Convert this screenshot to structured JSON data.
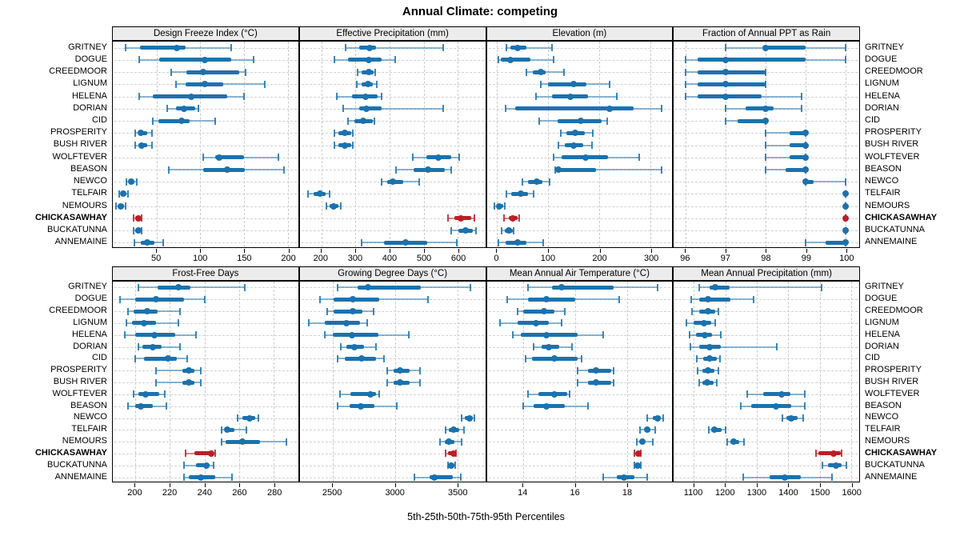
{
  "title": "Annual Climate: competing",
  "xlabel": "5th-25th-50th-75th-95th Percentiles",
  "colors": {
    "point": "#1b72ae",
    "whisker": "rgba(27,114,174,0.5)",
    "cap": "rgba(27,114,174,0.85)",
    "highlight_point": "#bb1f26",
    "highlight_whisker": "rgba(187,31,38,0.5)",
    "highlight_cap": "rgba(187,31,38,0.85)",
    "strip_bg": "#ececec",
    "grid": "#c9c9c9"
  },
  "sites": [
    "GRITNEY",
    "DOGUE",
    "CREEDMOOR",
    "LIGNUM",
    "HELENA",
    "DORIAN",
    "CID",
    "PROSPERITY",
    "BUSH RIVER",
    "WOLFTEVER",
    "BEASON",
    "NEWCO",
    "TELFAIR",
    "NEMOURS",
    "CHICKASAWHAY",
    "BUCKATUNNA",
    "ANNEMAINE"
  ],
  "highlight_site": "CHICKASAWHAY",
  "chart_data": {
    "type": "dotplot",
    "percentiles": [
      5,
      25,
      50,
      75,
      95
    ],
    "panels": [
      {
        "title": "Design Freeze Index (°C)",
        "grid_row": 0,
        "col": 0,
        "range": [
          0,
          212
        ],
        "ticks": [
          50,
          100,
          150,
          200
        ],
        "values": [
          [
            15,
            31,
            73,
            83,
            135
          ],
          [
            30,
            53,
            105,
            135,
            161
          ],
          [
            67,
            84,
            103,
            145,
            152
          ],
          [
            72,
            83,
            105,
            126,
            174
          ],
          [
            30,
            46,
            90,
            131,
            150
          ],
          [
            62,
            72,
            81,
            94,
            98
          ],
          [
            46,
            52,
            79,
            88,
            117
          ],
          [
            26,
            29,
            32,
            39,
            45
          ],
          [
            26,
            29,
            33,
            39,
            45
          ],
          [
            103,
            117,
            122,
            150,
            189
          ],
          [
            64,
            103,
            131,
            151,
            196
          ],
          [
            16,
            19,
            21,
            25,
            27
          ],
          [
            7,
            9,
            12,
            16,
            17
          ],
          [
            4,
            6,
            9,
            13,
            15
          ],
          [
            24,
            26,
            29,
            31,
            33
          ],
          [
            24,
            26,
            29,
            32,
            33
          ],
          [
            25,
            32,
            39,
            48,
            58
          ]
        ]
      },
      {
        "title": "Effective Precipitation (mm)",
        "grid_row": 0,
        "col": 1,
        "range": [
          137,
          680
        ],
        "ticks": [
          200,
          300,
          400,
          500,
          600
        ],
        "values": [
          [
            270,
            310,
            341,
            361,
            558
          ],
          [
            239,
            278,
            339,
            376,
            416
          ],
          [
            307,
            317,
            339,
            353,
            357
          ],
          [
            304,
            318,
            337,
            352,
            362
          ],
          [
            246,
            290,
            329,
            365,
            376
          ],
          [
            265,
            312,
            333,
            376,
            558
          ],
          [
            278,
            298,
            323,
            350,
            355
          ],
          [
            238,
            249,
            268,
            288,
            292
          ],
          [
            238,
            249,
            268,
            288,
            292
          ],
          [
            469,
            507,
            542,
            581,
            603
          ],
          [
            418,
            471,
            512,
            562,
            580
          ],
          [
            376,
            392,
            410,
            440,
            487
          ],
          [
            162,
            178,
            195,
            213,
            225
          ],
          [
            215,
            225,
            237,
            250,
            257
          ],
          [
            570,
            590,
            609,
            638,
            648
          ],
          [
            581,
            602,
            622,
            644,
            652
          ],
          [
            317,
            384,
            447,
            510,
            597
          ]
        ]
      },
      {
        "title": "Elevation (m)",
        "grid_row": 0,
        "col": 2,
        "range": [
          -20,
          342
        ],
        "ticks": [
          0,
          100,
          200,
          300
        ],
        "values": [
          [
            19,
            26,
            40,
            57,
            107
          ],
          [
            2,
            7,
            26,
            65,
            111
          ],
          [
            58,
            70,
            85,
            95,
            130
          ],
          [
            86,
            99,
            150,
            175,
            219
          ],
          [
            76,
            107,
            144,
            178,
            234
          ],
          [
            16,
            36,
            219,
            267,
            322
          ],
          [
            82,
            118,
            164,
            204,
            215
          ],
          [
            125,
            136,
            153,
            172,
            187
          ],
          [
            120,
            133,
            150,
            168,
            185
          ],
          [
            111,
            126,
            173,
            217,
            277
          ],
          [
            114,
            118,
            120,
            194,
            321
          ],
          [
            49,
            60,
            77,
            88,
            103
          ],
          [
            19,
            28,
            47,
            60,
            72
          ],
          [
            -5,
            -1,
            4,
            12,
            15
          ],
          [
            14,
            23,
            31,
            40,
            43
          ],
          [
            9,
            15,
            23,
            30,
            33
          ],
          [
            2,
            16,
            40,
            58,
            90
          ]
        ]
      },
      {
        "title": "Fraction of Annual PPT as Rain",
        "grid_row": 0,
        "col": 3,
        "range": [
          95.7,
          100.33
        ],
        "ticks": [
          96,
          97,
          98,
          99,
          100
        ],
        "values": [
          [
            97,
            98,
            98,
            99,
            100
          ],
          [
            96,
            96.3,
            97,
            99,
            100
          ],
          [
            96,
            96.3,
            97,
            98,
            98
          ],
          [
            96,
            96.3,
            97,
            98,
            98
          ],
          [
            96,
            96.3,
            97,
            97.9,
            98.9
          ],
          [
            97,
            97.5,
            98,
            98.2,
            98.9
          ],
          [
            97,
            97.3,
            98,
            98,
            98
          ],
          [
            98,
            98.6,
            99,
            99,
            99
          ],
          [
            98,
            98.6,
            99,
            99,
            99
          ],
          [
            98,
            98.6,
            99,
            99,
            99
          ],
          [
            98,
            98.5,
            99,
            99,
            99
          ],
          [
            99,
            99,
            99,
            99.2,
            100
          ],
          [
            100,
            100,
            100,
            100,
            100
          ],
          [
            100,
            100,
            100,
            100,
            100
          ],
          [
            100,
            100,
            100,
            100,
            100
          ],
          [
            100,
            100,
            100,
            100,
            100
          ],
          [
            99,
            99.5,
            100,
            100,
            100
          ]
        ]
      },
      {
        "title": "Frost-Free Days",
        "grid_row": 1,
        "col": 0,
        "range": [
          187,
          294
        ],
        "ticks": [
          200,
          220,
          240,
          260,
          280
        ],
        "values": [
          [
            202,
            213,
            225,
            232,
            263
          ],
          [
            191,
            200,
            212,
            228,
            240
          ],
          [
            196,
            199,
            207,
            213,
            226
          ],
          [
            195,
            198,
            205,
            212,
            225
          ],
          [
            194,
            200,
            211,
            223,
            235
          ],
          [
            202,
            204,
            210,
            215,
            226
          ],
          [
            200,
            205,
            219,
            224,
            230
          ],
          [
            212,
            227,
            231,
            234,
            238
          ],
          [
            212,
            227,
            231,
            234,
            238
          ],
          [
            199,
            202,
            206,
            214,
            217
          ],
          [
            196,
            200,
            203,
            210,
            218
          ],
          [
            259,
            262,
            266,
            269,
            271
          ],
          [
            250,
            252,
            253,
            257,
            264
          ],
          [
            250,
            252,
            262,
            272,
            287
          ],
          [
            229,
            234,
            244,
            245,
            246
          ],
          [
            228,
            235,
            241,
            243,
            245
          ],
          [
            228,
            231,
            238,
            246,
            256
          ]
        ]
      },
      {
        "title": "Growing Degree Days (°C)",
        "grid_row": 1,
        "col": 1,
        "range": [
          2237,
          3724
        ],
        "ticks": [
          2500,
          3000,
          3500
        ],
        "values": [
          [
            2543,
            2703,
            2784,
            3205,
            3603
          ],
          [
            2401,
            2509,
            2662,
            2871,
            3265
          ],
          [
            2457,
            2510,
            2660,
            2737,
            2828
          ],
          [
            2310,
            2440,
            2608,
            2720,
            2780
          ],
          [
            2435,
            2504,
            2655,
            2866,
            3112
          ],
          [
            2565,
            2608,
            2677,
            2752,
            2845
          ],
          [
            2537,
            2601,
            2731,
            2849,
            2914
          ],
          [
            2935,
            2989,
            3039,
            3119,
            3198
          ],
          [
            2935,
            2989,
            3039,
            3119,
            3198
          ],
          [
            2558,
            2644,
            2802,
            2849,
            2871
          ],
          [
            2537,
            2634,
            2724,
            2838,
            3017
          ],
          [
            3535,
            3560,
            3599,
            3625,
            3636
          ],
          [
            3405,
            3431,
            3470,
            3513,
            3556
          ],
          [
            3362,
            3399,
            3435,
            3474,
            3535
          ],
          [
            3405,
            3427,
            3470,
            3485,
            3491
          ],
          [
            3427,
            3442,
            3453,
            3478,
            3485
          ],
          [
            3155,
            3276,
            3319,
            3463,
            3528
          ]
        ]
      },
      {
        "title": "Mean Annual Air Temperature (°C)",
        "grid_row": 1,
        "col": 2,
        "range": [
          12.6,
          19.75
        ],
        "ticks": [
          14,
          16,
          18
        ],
        "values": [
          [
            14.2,
            15.1,
            15.5,
            17.5,
            19.2
          ],
          [
            13.4,
            14.2,
            14.9,
            16.0,
            17.7
          ],
          [
            13.8,
            14.0,
            14.8,
            15.2,
            15.6
          ],
          [
            13.1,
            13.8,
            14.5,
            15.0,
            15.5
          ],
          [
            13.6,
            13.9,
            14.9,
            16.1,
            17.1
          ],
          [
            14.4,
            14.7,
            15.0,
            15.4,
            15.9
          ],
          [
            14.1,
            14.35,
            15.2,
            16.1,
            16.25
          ],
          [
            16.1,
            16.5,
            16.8,
            17.4,
            17.5
          ],
          [
            16.1,
            16.5,
            16.8,
            17.4,
            17.5
          ],
          [
            14.2,
            14.6,
            15.2,
            15.7,
            15.8
          ],
          [
            14.0,
            14.4,
            14.9,
            15.6,
            16.5
          ],
          [
            18.8,
            19.0,
            19.2,
            19.3,
            19.4
          ],
          [
            18.5,
            18.7,
            18.8,
            18.9,
            19.1
          ],
          [
            18.4,
            18.5,
            18.6,
            18.7,
            19.0
          ],
          [
            18.3,
            18.35,
            18.45,
            18.5,
            18.55
          ],
          [
            18.3,
            18.37,
            18.43,
            18.5,
            18.55
          ],
          [
            17.1,
            17.6,
            17.9,
            18.3,
            18.8
          ]
        ]
      },
      {
        "title": "Mean Annual Precipitation (mm)",
        "grid_row": 1,
        "col": 3,
        "range": [
          1036,
          1626
        ],
        "ticks": [
          1100,
          1200,
          1300,
          1400,
          1500,
          1600
        ],
        "values": [
          [
            1118,
            1149,
            1168,
            1213,
            1507
          ],
          [
            1091,
            1118,
            1145,
            1217,
            1291
          ],
          [
            1095,
            1118,
            1146,
            1169,
            1179
          ],
          [
            1077,
            1099,
            1132,
            1154,
            1168
          ],
          [
            1087,
            1107,
            1135,
            1157,
            1186
          ],
          [
            1089,
            1118,
            1151,
            1186,
            1365
          ],
          [
            1110,
            1130,
            1151,
            1173,
            1182
          ],
          [
            1113,
            1126,
            1145,
            1165,
            1177
          ],
          [
            1118,
            1128,
            1143,
            1163,
            1173
          ],
          [
            1270,
            1320,
            1378,
            1406,
            1452
          ],
          [
            1248,
            1283,
            1361,
            1410,
            1452
          ],
          [
            1382,
            1394,
            1410,
            1431,
            1448
          ],
          [
            1147,
            1155,
            1166,
            1188,
            1200
          ],
          [
            1207,
            1217,
            1227,
            1243,
            1260
          ],
          [
            1489,
            1497,
            1545,
            1567,
            1570
          ],
          [
            1509,
            1526,
            1551,
            1571,
            1586
          ],
          [
            1257,
            1341,
            1388,
            1439,
            1540
          ]
        ]
      }
    ]
  }
}
